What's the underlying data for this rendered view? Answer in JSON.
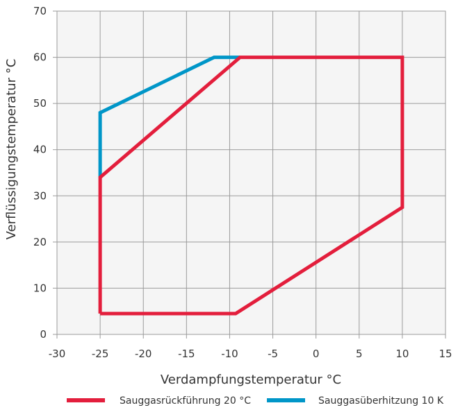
{
  "chart_data": {
    "type": "line",
    "xlabel": "Verdampfungstemperatur °C",
    "ylabel": "Verflüssigungstemperatur °C",
    "xlim": [
      -30,
      15
    ],
    "ylim": [
      0,
      70
    ],
    "xticks": [
      -30,
      -25,
      -20,
      -15,
      -10,
      -5,
      0,
      5,
      10,
      15
    ],
    "yticks": [
      0,
      10,
      20,
      30,
      40,
      50,
      60,
      70
    ],
    "grid": true,
    "legend_position": "bottom",
    "series": [
      {
        "name": "Sauggasrückführung 20 °C",
        "color": "#e31e3c",
        "points": [
          [
            -25,
            4.5
          ],
          [
            -9.3,
            4.5
          ],
          [
            10,
            27.5
          ],
          [
            10,
            60
          ],
          [
            -8.8,
            60
          ],
          [
            -25,
            34
          ],
          [
            -25,
            4.5
          ]
        ]
      },
      {
        "name": "Sauggasüberhitzung 10 K",
        "color": "#0096c8",
        "points": [
          [
            -25,
            34
          ],
          [
            -25,
            48
          ],
          [
            -11.8,
            60
          ],
          [
            -8.8,
            60
          ]
        ]
      }
    ]
  }
}
